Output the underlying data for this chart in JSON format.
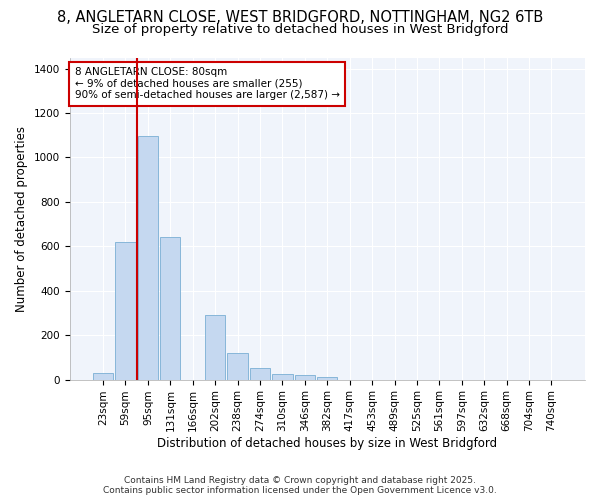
{
  "title_line1": "8, ANGLETARN CLOSE, WEST BRIDGFORD, NOTTINGHAM, NG2 6TB",
  "title_line2": "Size of property relative to detached houses in West Bridgford",
  "xlabel": "Distribution of detached houses by size in West Bridgford",
  "ylabel": "Number of detached properties",
  "categories": [
    "23sqm",
    "59sqm",
    "95sqm",
    "131sqm",
    "166sqm",
    "202sqm",
    "238sqm",
    "274sqm",
    "310sqm",
    "346sqm",
    "382sqm",
    "417sqm",
    "453sqm",
    "489sqm",
    "525sqm",
    "561sqm",
    "597sqm",
    "632sqm",
    "668sqm",
    "704sqm",
    "740sqm"
  ],
  "values": [
    30,
    620,
    1095,
    640,
    0,
    290,
    120,
    50,
    25,
    20,
    10,
    0,
    0,
    0,
    0,
    0,
    0,
    0,
    0,
    0,
    0
  ],
  "bar_color": "#c5d8f0",
  "bar_edge_color": "#7aafd4",
  "annotation_text": "8 ANGLETARN CLOSE: 80sqm\n← 9% of detached houses are smaller (255)\n90% of semi-detached houses are larger (2,587) →",
  "annotation_box_color": "#ffffff",
  "annotation_box_edge": "#cc0000",
  "vline_color": "#cc0000",
  "vline_x": 1.5,
  "ylim": [
    0,
    1450
  ],
  "yticks": [
    0,
    200,
    400,
    600,
    800,
    1000,
    1200,
    1400
  ],
  "background_color": "#ffffff",
  "plot_bg_color": "#f0f4fb",
  "grid_color": "#ffffff",
  "footer_line1": "Contains HM Land Registry data © Crown copyright and database right 2025.",
  "footer_line2": "Contains public sector information licensed under the Open Government Licence v3.0.",
  "title_fontsize": 10.5,
  "subtitle_fontsize": 9.5,
  "label_fontsize": 8.5,
  "tick_fontsize": 7.5,
  "annotation_fontsize": 7.5,
  "footer_fontsize": 6.5
}
